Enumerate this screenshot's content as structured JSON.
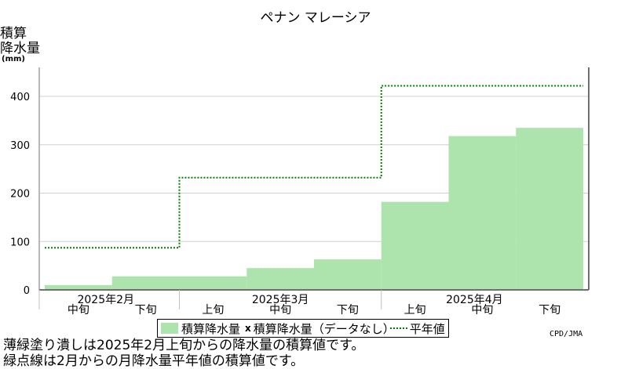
{
  "chart_data": {
    "type": "bar",
    "title": "ペナン マレーシア",
    "ylabel_lines": [
      "積算",
      "降水量",
      "(mm)"
    ],
    "ylim": [
      0,
      460
    ],
    "yticks": [
      0,
      100,
      200,
      300,
      400
    ],
    "grid": true,
    "periods": [
      "2025年2月 中旬",
      "2025年2月 下旬",
      "2025年3月 上旬",
      "2025年3月 中旬",
      "2025年3月 下旬",
      "2025年4月 上旬",
      "2025年4月 中旬",
      "2025年4月 下旬"
    ],
    "x_month_labels": [
      "2025年2月",
      "2025年3月",
      "2025年4月"
    ],
    "x_dekad_labels": [
      "中旬",
      "下旬",
      "上旬",
      "中旬",
      "下旬",
      "上旬",
      "中旬",
      "下旬"
    ],
    "series": [
      {
        "name": "積算降水量",
        "values": [
          10,
          28,
          28,
          45,
          63,
          182,
          318,
          335
        ],
        "color": "#ade3ad"
      },
      {
        "name": "平年値",
        "values": [
          87,
          87,
          232,
          232,
          232,
          422,
          422,
          422
        ],
        "color": "#008000"
      }
    ],
    "legend": {
      "position": "bottom",
      "actual": "積算降水量",
      "marker": "x",
      "missing": "積算降水量（データなし）",
      "normal": "平年値"
    }
  },
  "credit": "CPD/JMA",
  "notes": [
    "薄緑塗り潰しは2025年2月上旬からの降水量の積算値です。",
    "緑点線は2月からの月降水量平年値の積算値です。"
  ]
}
